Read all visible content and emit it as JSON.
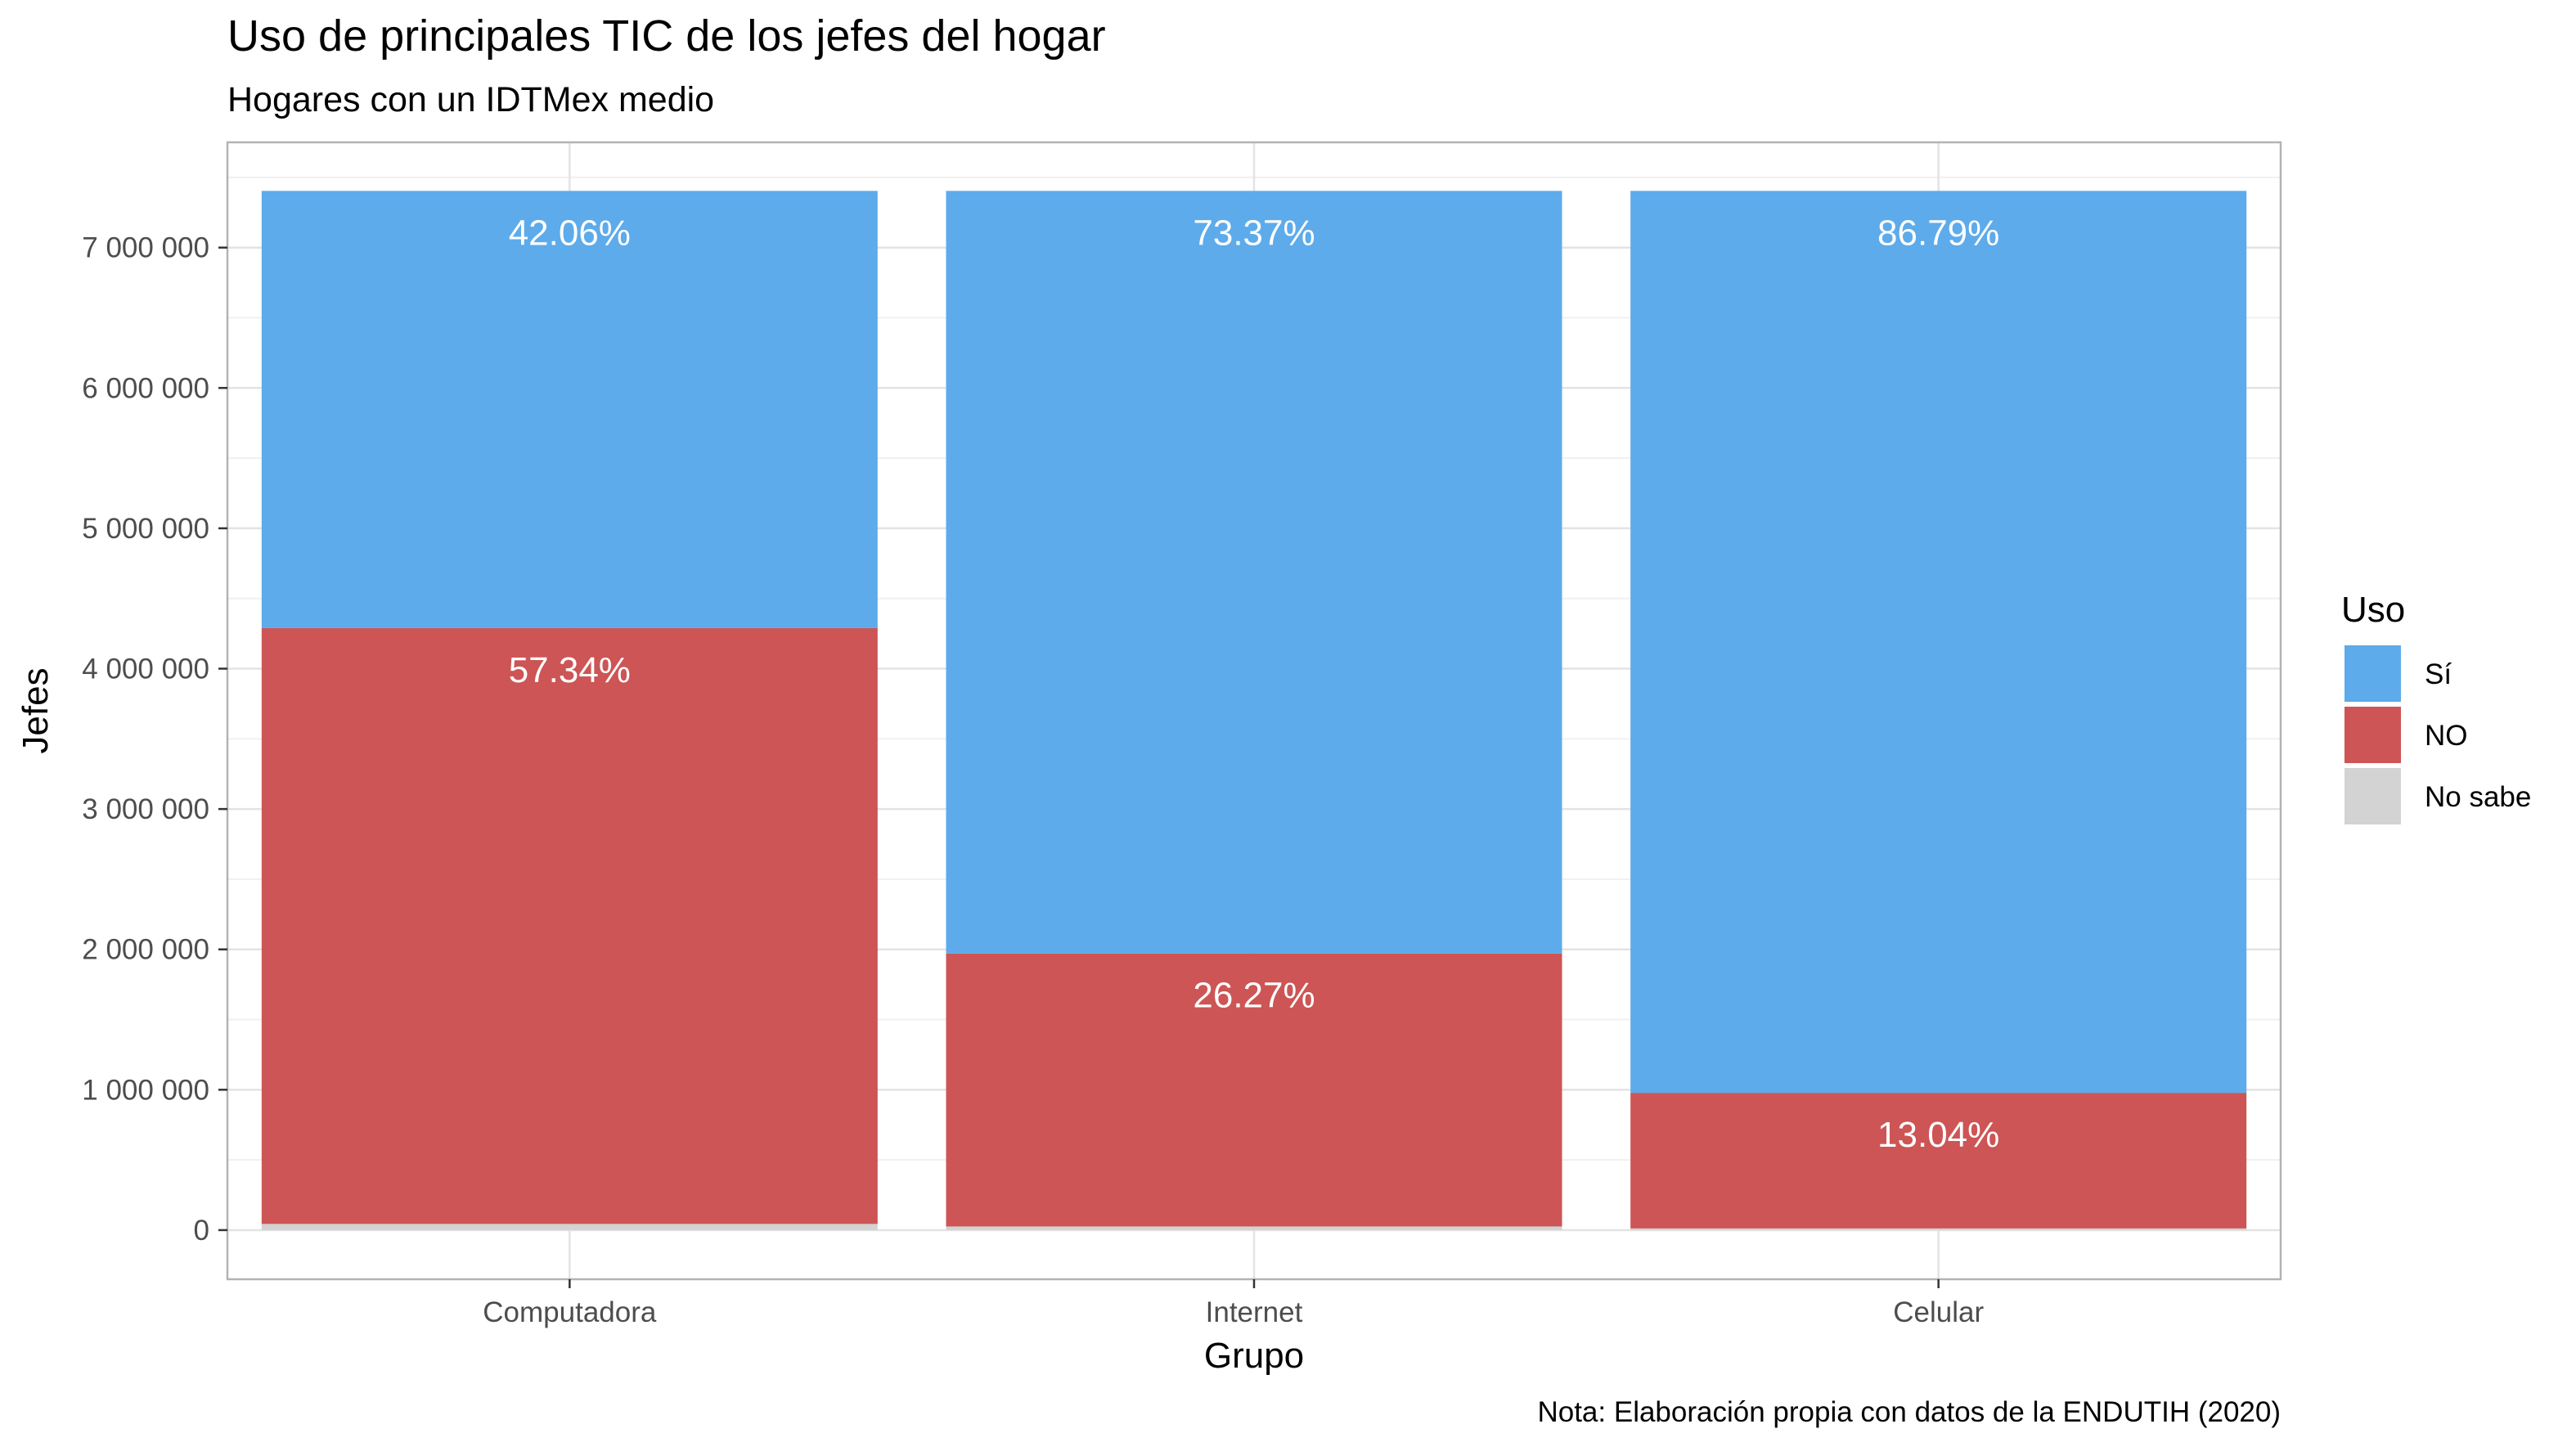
{
  "chart_data": {
    "type": "bar",
    "stacked": true,
    "title": "Uso de principales TIC de los jefes del hogar",
    "subtitle": "Hogares con un IDTMex medio",
    "xlabel": "Grupo",
    "ylabel": "Jefes",
    "caption": "Nota: Elaboración propia con datos de la ENDUTIH (2020)",
    "categories": [
      "Computadora",
      "Internet",
      "Celular"
    ],
    "ylim": [
      -350000,
      7750000
    ],
    "y_ticks": [
      0,
      1000000,
      2000000,
      3000000,
      4000000,
      5000000,
      6000000,
      7000000
    ],
    "y_tick_labels": [
      "0",
      "1 000 000",
      "2 000 000",
      "3 000 000",
      "4 000 000",
      "5 000 000",
      "6 000 000",
      "7 000 000"
    ],
    "grid": true,
    "legend": {
      "title": "Uso",
      "position": "right"
    },
    "series": [
      {
        "name": "No sabe",
        "color": "#d3d3d3",
        "values": [
          44000,
          26000,
          12000
        ],
        "labels": [
          "",
          "",
          ""
        ]
      },
      {
        "name": "NO",
        "color": "#cd5555",
        "values": [
          4245000,
          1945000,
          966000
        ],
        "labels": [
          "57.34%",
          "26.27%",
          "13.04%"
        ]
      },
      {
        "name": "Sí",
        "color": "#5dabeb",
        "values": [
          3115000,
          5433000,
          6426000
        ],
        "labels": [
          "42.06%",
          "73.37%",
          "86.79%"
        ]
      }
    ],
    "legend_order": [
      "Sí",
      "NO",
      "No sabe"
    ]
  }
}
